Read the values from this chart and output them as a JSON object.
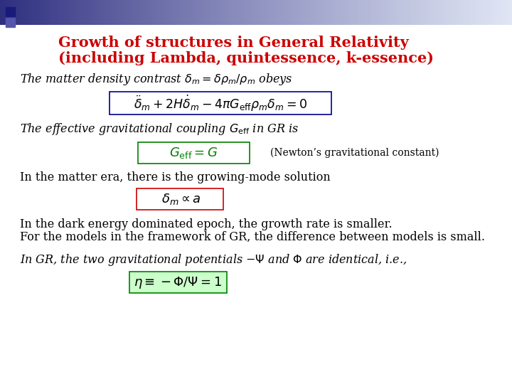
{
  "title_line1": "Growth of structures in General Relativity",
  "title_line2": "(including Lambda, quintessence, k-essence)",
  "title_color": "#cc0000",
  "title_fontsize": 15,
  "bg_color": "#ffffff",
  "text_color": "#000000",
  "body_fontsize": 11.5,
  "eq1_box_color": "#00008b",
  "eq2_box_color": "#008000",
  "eq3_box_color": "#cc0000",
  "eq4_box_color": "#008000",
  "eq4_box_fill": "#ccffcc",
  "line1": "The matter density contrast $\\delta_m = \\delta\\rho_m/\\rho_m$ obeys",
  "eq1": "$\\ddot{\\delta}_m + 2H\\dot{\\delta}_m - 4\\pi G_{\\mathrm{eff}}\\rho_m\\delta_m = 0$",
  "line2": "The effective gravitational coupling $G_{\\mathrm{eff}}$ in GR is",
  "eq2": "$G_{\\mathrm{eff}} = G$",
  "eq2_note": "(Newton’s gravitational constant)",
  "line3": "In the matter era, there is the growing-mode solution",
  "eq3": "$\\delta_m \\propto a$",
  "line4a": "In the dark energy dominated epoch, the growth rate is smaller.",
  "line4b": "For the models in the framework of GR, the difference between models is small.",
  "line5": "In GR, the two gravitational potentials $-\\Psi$ and $\\Phi$ are identical, i.e.,",
  "eq4": "$\\eta \\equiv -\\Phi/\\Psi = 1$"
}
